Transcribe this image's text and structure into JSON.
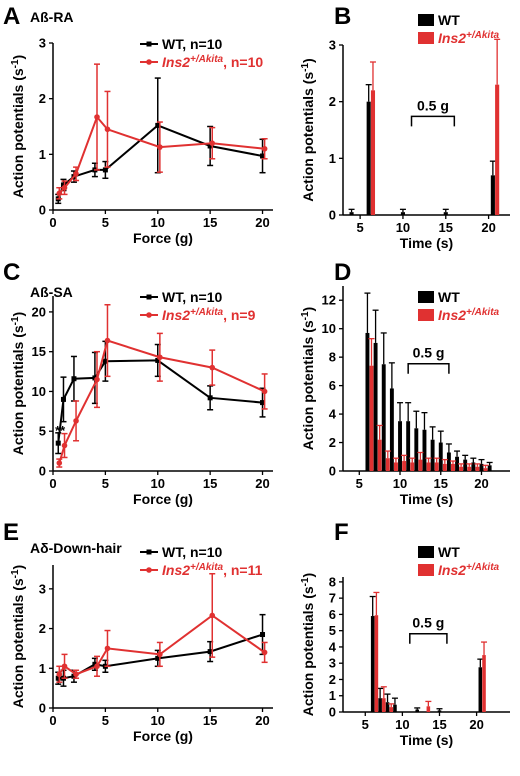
{
  "colors": {
    "wt": "#000000",
    "akita": "#e03131"
  },
  "chart_data": [
    {
      "panel": "A",
      "title": "Aß-RA",
      "type": "line",
      "xlabel": "Force (g)",
      "ylabel": "Action potentials (s-1)",
      "xlim": [
        0,
        21
      ],
      "ylim": [
        0,
        3
      ],
      "xticks": [
        0,
        5,
        10,
        15,
        20
      ],
      "yticks": [
        0,
        1,
        2,
        3
      ],
      "legend": "top-right",
      "series": [
        {
          "name": "WT, n=10",
          "color": "#000000",
          "x": [
            0.5,
            1,
            2,
            4,
            5,
            10,
            15,
            20
          ],
          "values": [
            0.2,
            0.45,
            0.6,
            0.72,
            0.72,
            1.52,
            1.15,
            0.97
          ],
          "errors": [
            0.08,
            0.1,
            0.1,
            0.12,
            0.15,
            0.85,
            0.35,
            0.3
          ]
        },
        {
          "name_prefix": "Ins2",
          "name_sup": "+/Akita",
          "name_suffix": ", n=10",
          "color": "#e03131",
          "x": [
            0.6,
            1.1,
            2.2,
            4.2,
            5.2,
            10.2,
            15.2,
            20.2
          ],
          "values": [
            0.3,
            0.4,
            0.65,
            1.67,
            1.45,
            1.13,
            1.2,
            1.1
          ],
          "errors": [
            0.1,
            0.12,
            0.12,
            0.95,
            0.68,
            0.45,
            0.28,
            0.18
          ]
        }
      ]
    },
    {
      "panel": "B",
      "type": "bar",
      "xlabel": "Time (s)",
      "ylabel": "Action potentials (s-1)",
      "xlim": [
        3,
        22.5
      ],
      "ylim": [
        0,
        3
      ],
      "xticks": [
        5,
        10,
        15,
        20
      ],
      "yticks": [
        0,
        1,
        2,
        3
      ],
      "legend": "top-right",
      "annotation": "0.5 g",
      "bar_width": 0.48,
      "series": [
        {
          "name": "WT",
          "color": "#000000",
          "x": [
            4,
            6,
            10,
            15,
            20.5
          ],
          "values": [
            0.05,
            2.0,
            0.05,
            0.05,
            0.7
          ],
          "errors": [
            0.05,
            0.3,
            0.05,
            0.05,
            0.25
          ]
        },
        {
          "name_prefix": "Ins2",
          "name_sup": "+/Akita",
          "name_suffix": "",
          "color": "#e03131",
          "x": [
            6.5,
            21
          ],
          "values": [
            2.2,
            2.3
          ],
          "errors": [
            0.5,
            0.8
          ]
        }
      ]
    },
    {
      "panel": "C",
      "title": "Aß-SA",
      "type": "line",
      "xlabel": "Force (g)",
      "ylabel": "Action potentials (s-1)",
      "xlim": [
        0,
        21
      ],
      "ylim": [
        0,
        22
      ],
      "xticks": [
        0,
        5,
        10,
        15,
        20
      ],
      "yticks": [
        0,
        5,
        10,
        15,
        20
      ],
      "legend": "top-right",
      "annotation": "**",
      "series": [
        {
          "name": "WT, n=10",
          "color": "#000000",
          "x": [
            0.5,
            1,
            2,
            4,
            5,
            10,
            15,
            20
          ],
          "values": [
            3.5,
            9.0,
            11.6,
            11.7,
            13.8,
            13.9,
            9.2,
            8.6
          ],
          "errors": [
            1.3,
            2.8,
            2.8,
            3.2,
            2.5,
            2.0,
            1.5,
            1.8
          ]
        },
        {
          "name_prefix": "Ins2",
          "name_sup": "+/Akita",
          "name_suffix": ", n=9",
          "color": "#e03131",
          "x": [
            0.6,
            1.1,
            2.2,
            4.2,
            5.2,
            10.2,
            15.2,
            20.2
          ],
          "values": [
            1.0,
            3.2,
            6.3,
            11.5,
            16.4,
            14.3,
            13.0,
            10.0
          ],
          "errors": [
            0.5,
            1.5,
            2.5,
            3.5,
            4.5,
            3.0,
            2.2,
            2.2
          ]
        }
      ]
    },
    {
      "panel": "D",
      "type": "bar",
      "xlabel": "Time (s)",
      "ylabel": "Action potentials (s-1)",
      "xlim": [
        3,
        23.5
      ],
      "ylim": [
        0,
        13
      ],
      "xticks": [
        5,
        10,
        15,
        20
      ],
      "yticks": [
        0,
        2,
        4,
        6,
        8,
        10,
        12
      ],
      "legend": "top-right",
      "annotation": "0.5 g",
      "bar_width": 0.48,
      "series": [
        {
          "name": "WT",
          "color": "#000000",
          "x": [
            6,
            7,
            8,
            9,
            10,
            11,
            12,
            13,
            14,
            15,
            16,
            17,
            18,
            19,
            20,
            21
          ],
          "values": [
            9.7,
            9.0,
            7.5,
            5.8,
            3.5,
            3.5,
            3.0,
            2.9,
            2.2,
            2.0,
            1.3,
            1.0,
            0.8,
            0.6,
            0.5,
            0.4
          ],
          "errors": [
            2.8,
            2.3,
            2.2,
            1.8,
            1.3,
            1.3,
            1.2,
            1.2,
            0.9,
            0.8,
            0.6,
            0.4,
            0.3,
            0.3,
            0.3,
            0.2
          ]
        },
        {
          "name_prefix": "Ins2",
          "name_sup": "+/Akita",
          "name_suffix": "",
          "color": "#e03131",
          "x": [
            6.5,
            7.5,
            8.5,
            9.5,
            10.5,
            11.5,
            12.5,
            13.5,
            14.5,
            15.5,
            16.5,
            17.5,
            18.5,
            19.5,
            20.5
          ],
          "values": [
            7.4,
            2.2,
            0.9,
            0.6,
            0.7,
            0.6,
            0.8,
            0.6,
            0.6,
            0.5,
            0.5,
            0.3,
            0.3,
            0.3,
            0.2
          ],
          "errors": [
            1.9,
            1.0,
            0.5,
            0.3,
            0.4,
            0.3,
            0.5,
            0.3,
            0.3,
            0.3,
            0.2,
            0.2,
            0.2,
            0.2,
            0.2
          ]
        }
      ]
    },
    {
      "panel": "E",
      "title": "Aδ-Down-hair",
      "type": "line",
      "xlabel": "Force (g)",
      "ylabel": "Action potentials (s-1)",
      "xlim": [
        0,
        21
      ],
      "ylim": [
        0,
        3.6
      ],
      "xticks": [
        0,
        5,
        10,
        15,
        20
      ],
      "yticks": [
        0,
        1,
        2,
        3
      ],
      "legend": "top-right",
      "series": [
        {
          "name": "WT, n=10",
          "color": "#000000",
          "x": [
            0.5,
            1,
            2,
            4,
            5,
            10,
            15,
            20
          ],
          "values": [
            0.75,
            0.75,
            0.8,
            1.1,
            1.05,
            1.25,
            1.42,
            1.85
          ],
          "errors": [
            0.15,
            0.2,
            0.15,
            0.15,
            0.15,
            0.2,
            0.25,
            0.5
          ]
        },
        {
          "name_prefix": "Ins2",
          "name_sup": "+/Akita",
          "name_suffix": ", n=11",
          "color": "#e03131",
          "x": [
            0.6,
            1.1,
            2.2,
            4.2,
            5.2,
            10.2,
            15.2,
            20.2
          ],
          "values": [
            0.85,
            1.05,
            0.85,
            1.05,
            1.5,
            1.35,
            2.33,
            1.4
          ],
          "errors": [
            0.2,
            0.3,
            0.1,
            0.25,
            0.45,
            0.3,
            1.05,
            0.25
          ]
        }
      ]
    },
    {
      "panel": "F",
      "type": "bar",
      "xlabel": "Time (s)",
      "ylabel": "Action potentials (s-1)",
      "xlim": [
        2,
        24.5
      ],
      "ylim": [
        0,
        8.3
      ],
      "xticks": [
        5,
        10,
        15,
        20
      ],
      "yticks": [
        0,
        1,
        2,
        3,
        4,
        5,
        6,
        7,
        8
      ],
      "legend": "top-right",
      "annotation": "0.5 g",
      "bar_width": 0.48,
      "series": [
        {
          "name": "WT",
          "color": "#000000",
          "x": [
            6,
            7,
            8,
            9,
            12,
            15,
            20.5
          ],
          "values": [
            5.9,
            0.85,
            0.6,
            0.45,
            0.15,
            0.1,
            2.75
          ],
          "errors": [
            1.2,
            0.6,
            0.5,
            0.4,
            0.1,
            0.1,
            0.5
          ]
        },
        {
          "name_prefix": "Ins2",
          "name_sup": "+/Akita",
          "name_suffix": "",
          "color": "#e03131",
          "x": [
            6.5,
            7.5,
            8.5,
            13.5,
            21
          ],
          "values": [
            5.95,
            0.85,
            0.3,
            0.35,
            3.5
          ],
          "errors": [
            1.4,
            0.7,
            0.2,
            0.3,
            0.8
          ]
        }
      ]
    }
  ]
}
